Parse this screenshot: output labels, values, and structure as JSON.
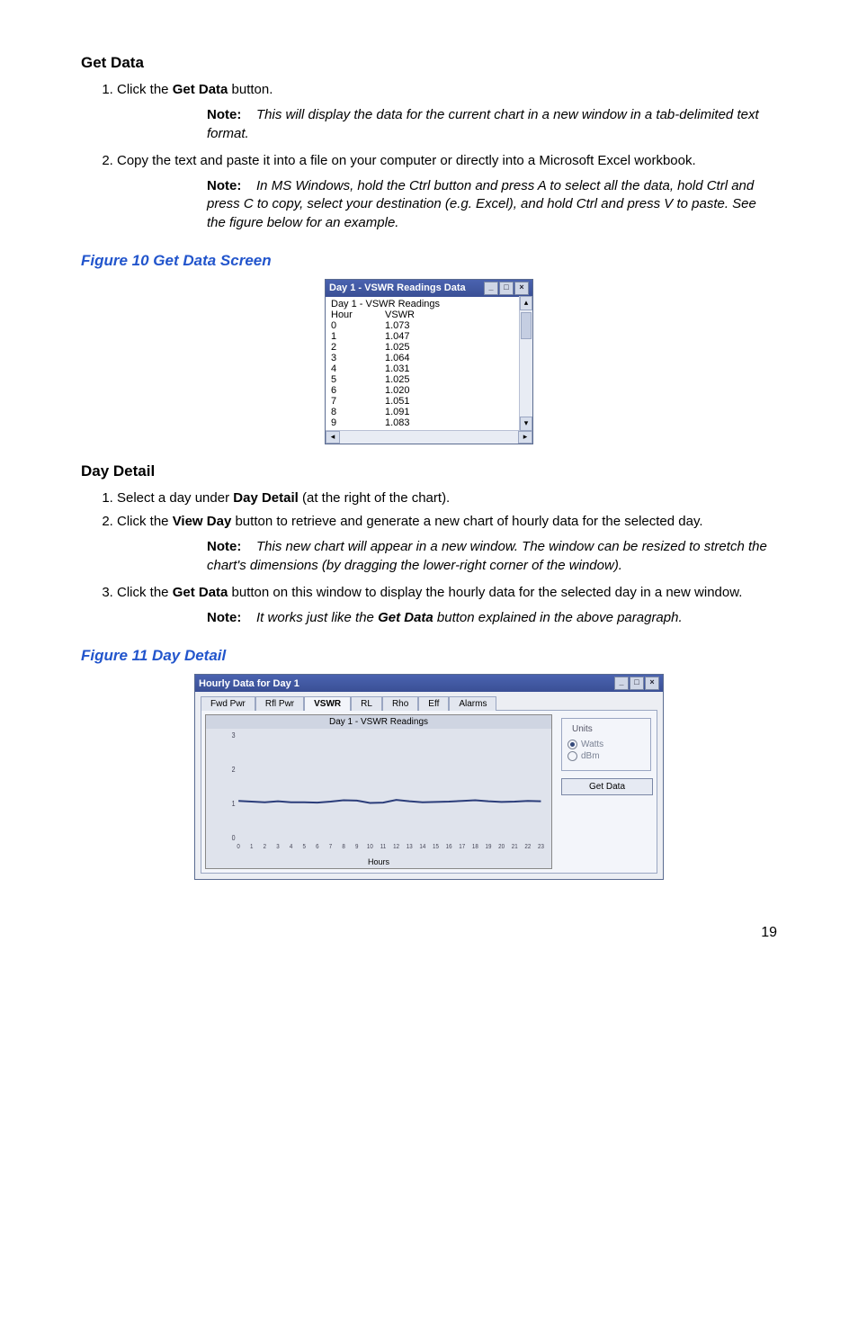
{
  "sections": {
    "getdata_heading": "Get Data",
    "daydetail_heading": "Day Detail"
  },
  "list1": {
    "item1": {
      "prefix": "Click the ",
      "bold": "Get Data",
      "suffix": " button."
    },
    "item2": "Copy the text and paste it into a file on your computer or directly into a Microsoft Excel workbook."
  },
  "notes": {
    "label": "Note:",
    "n1": "This will display the data for the current chart in a new window in a tab-delimited text format.",
    "n2": "In MS Windows, hold the Ctrl button and press A to select all the data, hold Ctrl and press C to copy, select your destination (e.g. Excel), and hold Ctrl and press V to paste. See the figure below for an example.",
    "n3": "This new chart will appear in a new window. The window can be resized to stretch the chart's dimensions (by dragging the lower-right corner of the window).",
    "n4_a": "It works just like the ",
    "n4_b": "Get Data",
    "n4_c": " button explained in the above paragraph."
  },
  "figures": {
    "f10": "Figure 10    Get Data Screen",
    "f11": "Figure 11    Day Detail"
  },
  "list2": {
    "item1_a": "Select a day under ",
    "item1_b": "Day Detail",
    "item1_c": " (at the right of the chart).",
    "item2_a": "Click the ",
    "item2_b": "View Day",
    "item2_c": " button to retrieve and generate a new chart of hourly data for the selected day.",
    "item3_a": "Click the ",
    "item3_b": "Get Data",
    "item3_c": " button on this window to display the hourly data for the selected day in a new window."
  },
  "fig10": {
    "title": "Day 1 - VSWR Readings Data",
    "header": "Day 1 - VSWR Readings",
    "col1": "Hour",
    "col2": "VSWR",
    "rows": [
      {
        "h": "0",
        "v": "1.073"
      },
      {
        "h": "1",
        "v": "1.047"
      },
      {
        "h": "2",
        "v": "1.025"
      },
      {
        "h": "3",
        "v": "1.064"
      },
      {
        "h": "4",
        "v": "1.031"
      },
      {
        "h": "5",
        "v": "1.025"
      },
      {
        "h": "6",
        "v": "1.020"
      },
      {
        "h": "7",
        "v": "1.051"
      },
      {
        "h": "8",
        "v": "1.091"
      },
      {
        "h": "9",
        "v": "1.083"
      }
    ]
  },
  "fig11": {
    "title": "Hourly Data for Day 1",
    "tabs": [
      "Fwd Pwr",
      "Rfl Pwr",
      "VSWR",
      "RL",
      "Rho",
      "Eff",
      "Alarms"
    ],
    "active_tab": 2,
    "chart": {
      "title": "Day 1 - VSWR Readings",
      "xlabel": "Hours",
      "x_ticks": [
        "0",
        "1",
        "2",
        "3",
        "4",
        "5",
        "6",
        "7",
        "8",
        "9",
        "10",
        "11",
        "12",
        "13",
        "14",
        "15",
        "16",
        "17",
        "18",
        "19",
        "20",
        "21",
        "22",
        "23"
      ],
      "y_ticks": [
        "0",
        "1",
        "2",
        "3"
      ],
      "ylim": [
        0,
        3
      ],
      "line_color": "#2b3d7a",
      "bg_color": "#dfe3ec",
      "values": [
        1.07,
        1.05,
        1.03,
        1.06,
        1.03,
        1.03,
        1.02,
        1.05,
        1.09,
        1.08,
        1.01,
        1.02,
        1.1,
        1.06,
        1.03,
        1.04,
        1.05,
        1.07,
        1.09,
        1.06,
        1.04,
        1.05,
        1.07,
        1.06
      ]
    },
    "units": {
      "label": "Units",
      "opt1": "Watts",
      "opt2": "dBm",
      "selected": "Watts"
    },
    "getdata_btn": "Get Data"
  },
  "page_number": "19"
}
